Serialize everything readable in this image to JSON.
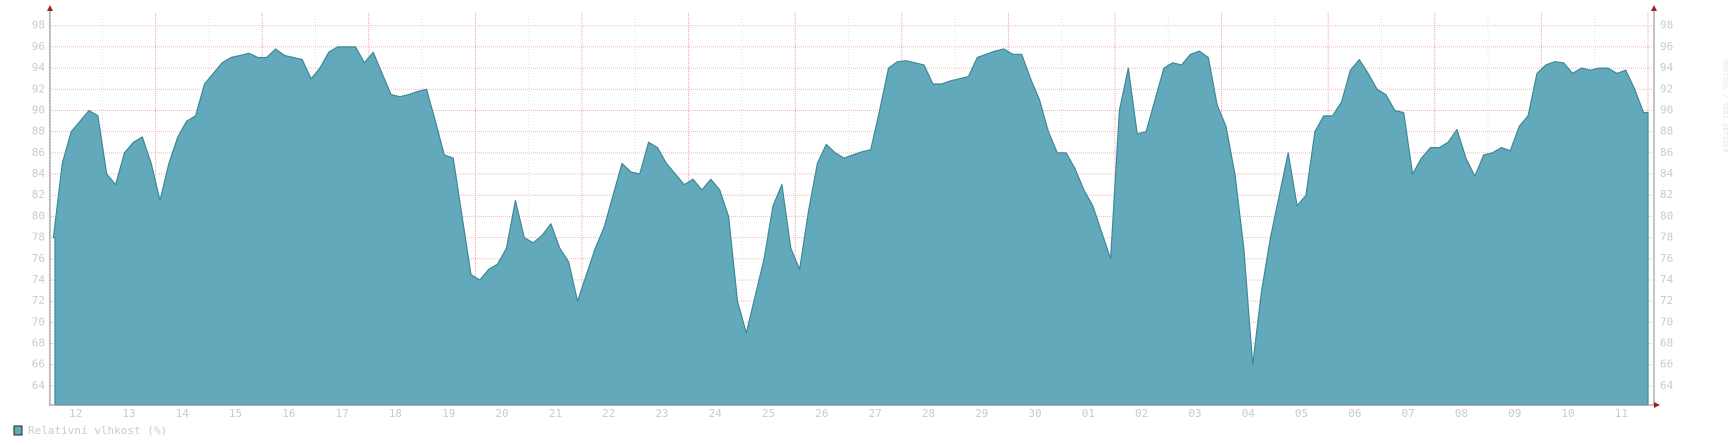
{
  "chart_data": {
    "type": "area",
    "categories": [
      "12",
      "13",
      "14",
      "15",
      "16",
      "17",
      "18",
      "19",
      "20",
      "21",
      "22",
      "23",
      "24",
      "25",
      "26",
      "27",
      "28",
      "29",
      "30",
      "01",
      "02",
      "03",
      "04",
      "05",
      "06",
      "07",
      "08",
      "09",
      "10",
      "11"
    ],
    "series": [
      {
        "name": "Relativní vlhkost (%)",
        "color": "#62aabb",
        "values": [
          [
            78,
            85,
            88,
            89,
            90,
            89.5
          ],
          [
            84,
            83,
            86,
            87,
            87.5,
            85
          ],
          [
            81.5,
            85,
            87.5,
            89,
            89.5,
            92.5
          ],
          [
            93.5,
            94.5,
            95,
            95.2,
            95.4,
            95
          ],
          [
            95,
            95.8,
            95.2,
            95,
            94.8,
            93
          ],
          [
            94,
            95.5,
            96,
            96,
            96,
            94.5
          ],
          [
            95.5,
            93.5,
            91.5,
            91.3,
            91.5,
            91.8
          ],
          [
            92,
            89,
            85.8,
            85.5,
            80,
            74.5
          ],
          [
            74,
            75,
            75.5,
            77,
            81.5,
            78
          ],
          [
            77.5,
            78.2,
            79.3,
            77,
            75.7,
            72
          ],
          [
            74.5,
            77,
            79,
            82,
            85,
            84.2
          ],
          [
            84,
            87,
            86.5,
            85,
            84,
            83
          ],
          [
            83.5,
            82.5,
            83.5,
            82.5,
            80,
            72
          ],
          [
            69,
            72.5,
            76,
            81,
            83,
            77
          ],
          [
            75,
            80.5,
            85,
            86.8,
            86,
            85.5
          ],
          [
            85.8,
            86.1,
            86.3,
            90,
            94,
            94.6
          ],
          [
            94.7,
            94.5,
            94.3,
            92.5,
            92.5,
            92.8
          ],
          [
            93,
            93.2,
            95,
            95.3,
            95.6,
            95.8
          ],
          [
            95.3,
            95.3,
            93,
            91,
            88,
            86
          ],
          [
            86,
            84.5,
            82.5,
            81,
            78.5,
            76
          ],
          [
            90,
            94,
            87.8,
            88,
            91,
            94
          ],
          [
            94.5,
            94.3,
            95.3,
            95.6,
            95,
            90.5
          ],
          [
            88.5,
            84,
            77,
            66,
            73,
            78
          ],
          [
            82,
            86,
            81,
            82,
            88,
            89.5
          ],
          [
            89.5,
            90.8,
            93.8,
            94.8,
            93.5,
            92
          ],
          [
            91.5,
            90,
            89.8,
            84,
            85.5,
            86.5
          ],
          [
            86.5,
            87,
            88.2,
            85.5,
            83.8,
            85.8
          ],
          [
            86,
            86.5,
            86.2,
            88.5,
            89.5,
            93.5
          ],
          [
            94.3,
            94.6,
            94.5,
            93.5,
            94,
            93.8
          ],
          [
            94,
            94,
            93.5,
            93.8,
            92,
            89.8
          ]
        ]
      }
    ],
    "ylim": [
      62.2,
      99.2
    ],
    "yticks": [
      64,
      66,
      68,
      70,
      72,
      74,
      76,
      78,
      80,
      82,
      84,
      86,
      88,
      90,
      92,
      94,
      96,
      98
    ],
    "grid": true,
    "watermark": "RRDTOOL / TOBI OETIKER"
  }
}
